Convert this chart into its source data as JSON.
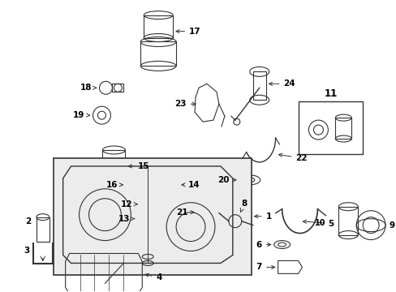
{
  "bg_color": "#ffffff",
  "line_color": "#333333",
  "label_fontsize": 7.5,
  "figsize": [
    4.89,
    3.6
  ],
  "dpi": 100
}
